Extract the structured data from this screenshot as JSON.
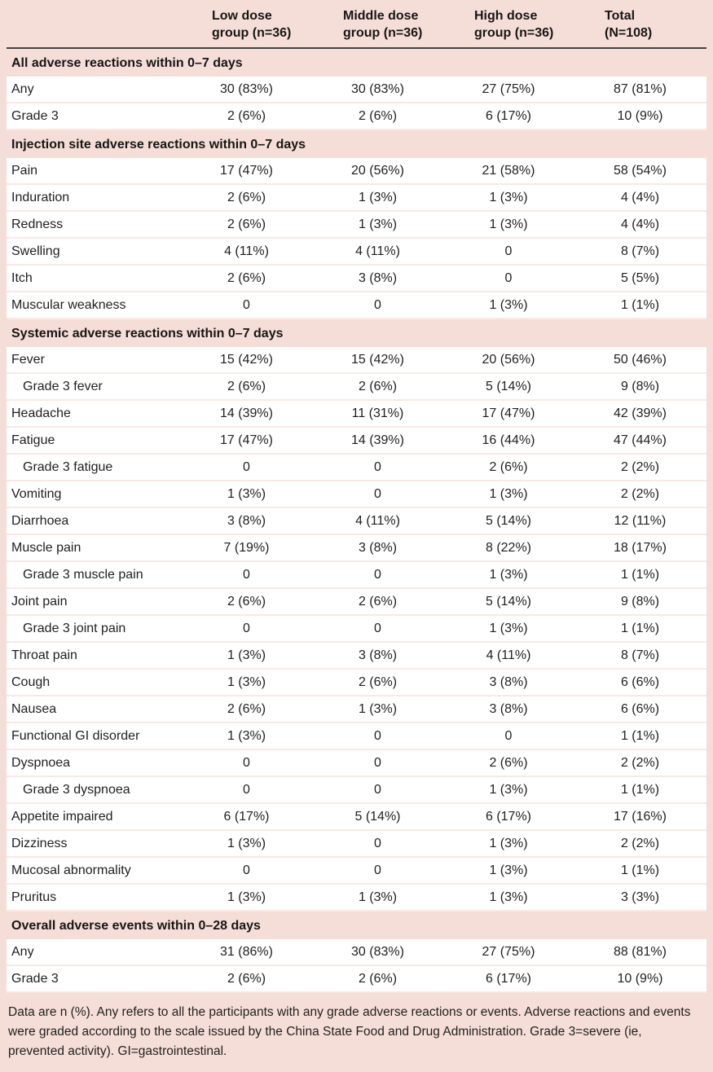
{
  "table": {
    "column_headers": [
      "Low dose\ngroup (n=36)",
      "Middle dose\ngroup (n=36)",
      "High dose\ngroup (n=36)",
      "Total\n(N=108)"
    ],
    "sections": [
      {
        "title": "All adverse reactions within 0–7 days",
        "rows": [
          {
            "label": "Any",
            "indent": false,
            "values": [
              "30 (83%)",
              "30 (83%)",
              "27 (75%)",
              "87 (81%)"
            ]
          },
          {
            "label": "Grade 3",
            "indent": false,
            "values": [
              "2 (6%)",
              "2 (6%)",
              "6 (17%)",
              "10 (9%)"
            ]
          }
        ]
      },
      {
        "title": "Injection site adverse reactions within 0–7 days",
        "rows": [
          {
            "label": "Pain",
            "indent": false,
            "values": [
              "17 (47%)",
              "20 (56%)",
              "21 (58%)",
              "58 (54%)"
            ]
          },
          {
            "label": "Induration",
            "indent": false,
            "values": [
              "2 (6%)",
              "1 (3%)",
              "1 (3%)",
              "4 (4%)"
            ]
          },
          {
            "label": "Redness",
            "indent": false,
            "values": [
              "2 (6%)",
              "1 (3%)",
              "1 (3%)",
              "4 (4%)"
            ]
          },
          {
            "label": "Swelling",
            "indent": false,
            "values": [
              "4 (11%)",
              "4 (11%)",
              "0",
              "8 (7%)"
            ]
          },
          {
            "label": "Itch",
            "indent": false,
            "values": [
              "2 (6%)",
              "3 (8%)",
              "0",
              "5 (5%)"
            ]
          },
          {
            "label": "Muscular weakness",
            "indent": false,
            "values": [
              "0",
              "0",
              "1 (3%)",
              "1 (1%)"
            ]
          }
        ]
      },
      {
        "title": "Systemic adverse reactions within 0–7 days",
        "rows": [
          {
            "label": "Fever",
            "indent": false,
            "values": [
              "15 (42%)",
              "15 (42%)",
              "20 (56%)",
              "50 (46%)"
            ]
          },
          {
            "label": "Grade 3 fever",
            "indent": true,
            "values": [
              "2 (6%)",
              "2 (6%)",
              "5 (14%)",
              "9 (8%)"
            ]
          },
          {
            "label": "Headache",
            "indent": false,
            "values": [
              "14 (39%)",
              "11 (31%)",
              "17 (47%)",
              "42 (39%)"
            ]
          },
          {
            "label": "Fatigue",
            "indent": false,
            "values": [
              "17 (47%)",
              "14 (39%)",
              "16 (44%)",
              "47 (44%)"
            ]
          },
          {
            "label": "Grade 3 fatigue",
            "indent": true,
            "values": [
              "0",
              "0",
              "2 (6%)",
              "2 (2%)"
            ]
          },
          {
            "label": "Vomiting",
            "indent": false,
            "values": [
              "1 (3%)",
              "0",
              "1 (3%)",
              "2 (2%)"
            ]
          },
          {
            "label": "Diarrhoea",
            "indent": false,
            "values": [
              "3 (8%)",
              "4 (11%)",
              "5 (14%)",
              "12 (11%)"
            ]
          },
          {
            "label": "Muscle pain",
            "indent": false,
            "values": [
              "7 (19%)",
              "3 (8%)",
              "8 (22%)",
              "18 (17%)"
            ]
          },
          {
            "label": "Grade 3 muscle pain",
            "indent": true,
            "values": [
              "0",
              "0",
              "1 (3%)",
              "1 (1%)"
            ]
          },
          {
            "label": "Joint pain",
            "indent": false,
            "values": [
              "2 (6%)",
              "2 (6%)",
              "5 (14%)",
              "9 (8%)"
            ]
          },
          {
            "label": "Grade 3 joint pain",
            "indent": true,
            "values": [
              "0",
              "0",
              "1 (3%)",
              "1 (1%)"
            ]
          },
          {
            "label": "Throat pain",
            "indent": false,
            "values": [
              "1 (3%)",
              "3 (8%)",
              "4 (11%)",
              "8 (7%)"
            ]
          },
          {
            "label": "Cough",
            "indent": false,
            "values": [
              "1 (3%)",
              "2 (6%)",
              "3 (8%)",
              "6 (6%)"
            ]
          },
          {
            "label": "Nausea",
            "indent": false,
            "values": [
              "2 (6%)",
              "1 (3%)",
              "3 (8%)",
              "6 (6%)"
            ]
          },
          {
            "label": "Functional GI disorder",
            "indent": false,
            "values": [
              "1 (3%)",
              "0",
              "0",
              "1 (1%)"
            ]
          },
          {
            "label": "Dyspnoea",
            "indent": false,
            "values": [
              "0",
              "0",
              "2 (6%)",
              "2 (2%)"
            ]
          },
          {
            "label": "Grade 3 dyspnoea",
            "indent": true,
            "values": [
              "0",
              "0",
              "1 (3%)",
              "1 (1%)"
            ]
          },
          {
            "label": "Appetite impaired",
            "indent": false,
            "values": [
              "6 (17%)",
              "5 (14%)",
              "6 (17%)",
              "17 (16%)"
            ]
          },
          {
            "label": "Dizziness",
            "indent": false,
            "values": [
              "1 (3%)",
              "0",
              "1 (3%)",
              "2 (2%)"
            ]
          },
          {
            "label": "Mucosal abnormality",
            "indent": false,
            "values": [
              "0",
              "0",
              "1 (3%)",
              "1 (1%)"
            ]
          },
          {
            "label": "Pruritus",
            "indent": false,
            "values": [
              "1 (3%)",
              "1 (3%)",
              "1 (3%)",
              "3 (3%)"
            ]
          }
        ]
      },
      {
        "title": "Overall adverse events within 0–28 days",
        "rows": [
          {
            "label": "Any",
            "indent": false,
            "values": [
              "31 (86%)",
              "30 (83%)",
              "27 (75%)",
              "88 (81%)"
            ]
          },
          {
            "label": "Grade 3",
            "indent": false,
            "values": [
              "2 (6%)",
              "2 (6%)",
              "6 (17%)",
              "10 (9%)"
            ]
          }
        ]
      }
    ]
  },
  "footnote": "Data are n (%). Any refers to all the participants with any grade adverse reactions or events. Adverse reactions and events were graded according to the scale issued by the China State Food and Drug Administration. Grade 3=severe (ie, prevented activity). GI=gastrointestinal.",
  "colors": {
    "page_pink": "#f6ded8",
    "row_separator_pink": "#f9e9e5",
    "header_rule_dark": "#434343",
    "row_white": "#ffffff",
    "text": "#1f1f1f"
  }
}
